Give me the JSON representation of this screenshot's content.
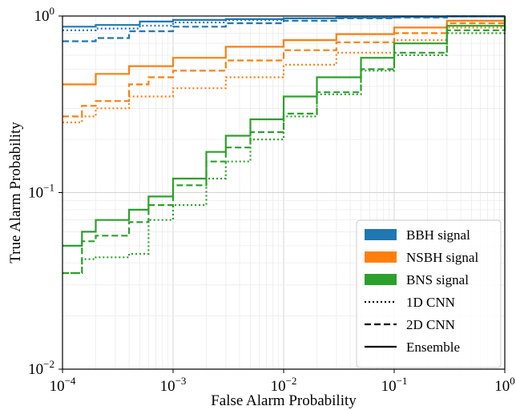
{
  "chart_data": {
    "type": "line",
    "title": "",
    "xlabel": "False Alarm Probability",
    "ylabel": "True Alarm Probability",
    "xscale": "log",
    "yscale": "log",
    "xlim": [
      0.0001,
      1
    ],
    "ylim": [
      0.01,
      1
    ],
    "x_ticks": [
      {
        "value": 0.0001,
        "base": "10",
        "exp": "−4"
      },
      {
        "value": 0.001,
        "base": "10",
        "exp": "−3"
      },
      {
        "value": 0.01,
        "base": "10",
        "exp": "−2"
      },
      {
        "value": 0.1,
        "base": "10",
        "exp": "−1"
      },
      {
        "value": 1,
        "base": "10",
        "exp": "0"
      }
    ],
    "y_ticks": [
      {
        "value": 0.01,
        "base": "10",
        "exp": "−2"
      },
      {
        "value": 0.1,
        "base": "10",
        "exp": "−1"
      },
      {
        "value": 1,
        "base": "10",
        "exp": "0"
      }
    ],
    "grid": true,
    "legend_position": "bottom-right",
    "legend": [
      {
        "label": "BBH signal",
        "kind": "patch",
        "color": "#1f77b4"
      },
      {
        "label": "NSBH signal",
        "kind": "patch",
        "color": "#ff7f0e"
      },
      {
        "label": "BNS signal",
        "kind": "patch",
        "color": "#2ca02c"
      },
      {
        "label": "1D CNN",
        "kind": "line",
        "style": "dotted",
        "color": "#000000"
      },
      {
        "label": "2D CNN",
        "kind": "line",
        "style": "dashed",
        "color": "#000000"
      },
      {
        "label": "Ensemble",
        "kind": "line",
        "style": "solid",
        "color": "#000000"
      }
    ],
    "series": [
      {
        "signal": "BBH",
        "model": "Ensemble",
        "color": "#1f77b4",
        "style": "solid",
        "x": [
          0.0001,
          0.0002,
          0.0005,
          0.001,
          0.003,
          0.01,
          0.03,
          0.1,
          0.3,
          1
        ],
        "y": [
          0.87,
          0.89,
          0.93,
          0.95,
          0.96,
          0.97,
          0.98,
          0.99,
          0.995,
          1.0
        ]
      },
      {
        "signal": "BBH",
        "model": "1D CNN",
        "color": "#1f77b4",
        "style": "dotted",
        "x": [
          0.0001,
          0.0002,
          0.0005,
          0.001,
          0.003,
          0.01,
          0.03,
          0.1,
          0.3,
          1
        ],
        "y": [
          0.83,
          0.85,
          0.88,
          0.92,
          0.95,
          0.97,
          0.98,
          0.99,
          0.995,
          1.0
        ]
      },
      {
        "signal": "BBH",
        "model": "2D CNN",
        "color": "#1f77b4",
        "style": "dashed",
        "x": [
          0.0001,
          0.0002,
          0.0004,
          0.001,
          0.003,
          0.01,
          0.03,
          0.1,
          0.3,
          1
        ],
        "y": [
          0.72,
          0.75,
          0.82,
          0.87,
          0.91,
          0.94,
          0.97,
          0.98,
          0.995,
          1.0
        ]
      },
      {
        "signal": "NSBH",
        "model": "Ensemble",
        "color": "#ff7f0e",
        "style": "solid",
        "x": [
          0.0001,
          0.0002,
          0.0004,
          0.001,
          0.003,
          0.01,
          0.03,
          0.1,
          0.3,
          1
        ],
        "y": [
          0.41,
          0.47,
          0.52,
          0.58,
          0.67,
          0.73,
          0.79,
          0.86,
          0.94,
          1.0
        ]
      },
      {
        "signal": "NSBH",
        "model": "2D CNN",
        "color": "#ff7f0e",
        "style": "dashed",
        "x": [
          0.0001,
          0.00015,
          0.0002,
          0.0004,
          0.0006,
          0.001,
          0.003,
          0.01,
          0.03,
          0.1,
          0.3,
          1
        ],
        "y": [
          0.27,
          0.31,
          0.33,
          0.41,
          0.45,
          0.49,
          0.56,
          0.64,
          0.71,
          0.8,
          0.91,
          1.0
        ]
      },
      {
        "signal": "NSBH",
        "model": "1D CNN",
        "color": "#ff7f0e",
        "style": "dotted",
        "x": [
          0.0001,
          0.00015,
          0.0002,
          0.0004,
          0.001,
          0.003,
          0.01,
          0.03,
          0.1,
          0.3,
          1
        ],
        "y": [
          0.25,
          0.27,
          0.3,
          0.35,
          0.39,
          0.45,
          0.53,
          0.62,
          0.73,
          0.86,
          1.0
        ]
      },
      {
        "signal": "BNS",
        "model": "Ensemble",
        "color": "#2ca02c",
        "style": "solid",
        "x": [
          0.0001,
          0.00015,
          0.0002,
          0.0004,
          0.0006,
          0.001,
          0.002,
          0.003,
          0.005,
          0.01,
          0.02,
          0.05,
          0.1,
          0.3,
          1
        ],
        "y": [
          0.05,
          0.06,
          0.07,
          0.08,
          0.095,
          0.12,
          0.17,
          0.21,
          0.26,
          0.35,
          0.45,
          0.58,
          0.7,
          0.88,
          1.0
        ]
      },
      {
        "signal": "BNS",
        "model": "2D CNN",
        "color": "#2ca02c",
        "style": "dashed",
        "x": [
          0.0001,
          0.00015,
          0.0002,
          0.0004,
          0.0006,
          0.001,
          0.002,
          0.003,
          0.005,
          0.01,
          0.02,
          0.05,
          0.1,
          0.3,
          1
        ],
        "y": [
          0.035,
          0.053,
          0.057,
          0.068,
          0.085,
          0.11,
          0.15,
          0.18,
          0.22,
          0.28,
          0.37,
          0.5,
          0.62,
          0.83,
          1.0
        ]
      },
      {
        "signal": "BNS",
        "model": "1D CNN",
        "color": "#2ca02c",
        "style": "dotted",
        "x": [
          0.0001,
          0.00015,
          0.0002,
          0.0004,
          0.0006,
          0.001,
          0.002,
          0.003,
          0.005,
          0.01,
          0.02,
          0.05,
          0.1,
          0.3,
          1
        ],
        "y": [
          0.035,
          0.042,
          0.043,
          0.045,
          0.07,
          0.085,
          0.12,
          0.15,
          0.2,
          0.27,
          0.36,
          0.49,
          0.6,
          0.8,
          1.0
        ]
      }
    ]
  }
}
